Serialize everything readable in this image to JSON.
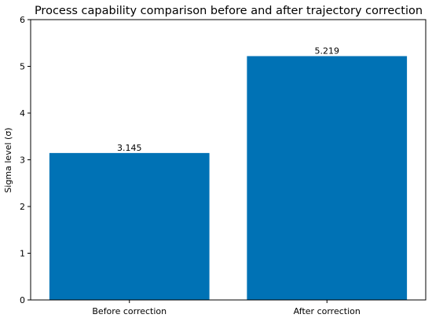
{
  "chart_data": {
    "type": "bar",
    "title": "Process capability comparison before and after trajectory correction",
    "xlabel": "",
    "ylabel": "Sigma level (σ)",
    "categories": [
      "Before correction",
      "After correction"
    ],
    "values": [
      3.145,
      5.219
    ],
    "data_labels": [
      "3.145",
      "5.219"
    ],
    "ylim": [
      0,
      6
    ],
    "yticks": [
      0,
      1,
      2,
      3,
      4,
      5,
      6
    ],
    "bar_color": "#0072b5",
    "grid": false,
    "legend": "none"
  }
}
